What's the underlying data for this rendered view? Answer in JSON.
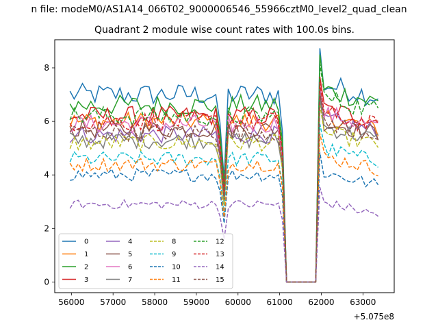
{
  "figure": {
    "suptitle": "n file: modeM0/AS1A14_066T02_9000006546_55966cztM0_level2_quad_clean",
    "title": "Quadrant 2 module wise count rates with 100.0s bins."
  },
  "chart_data": {
    "type": "line",
    "title": "Quadrant 2 module wise count rates with 100.0s bins.",
    "xlabel": "",
    "ylabel": "",
    "x_offset_label": "+5.075e8",
    "xlim": [
      55600,
      63750
    ],
    "ylim": [
      -0.4,
      9.05
    ],
    "xticks": [
      56000,
      57000,
      58000,
      59000,
      60000,
      61000,
      62000,
      63000
    ],
    "yticks": [
      0,
      2,
      4,
      6,
      8
    ],
    "legend": {
      "location": "lower-left",
      "columns": 4
    },
    "x_start": 55966,
    "bin_seconds": 100,
    "gap": [
      61150,
      61950
    ],
    "dips": [
      59700,
      61050
    ],
    "series": [
      {
        "name": "0",
        "color": "#1f77b4",
        "dashed": false,
        "level": 7.0,
        "post": 7.4
      },
      {
        "name": "1",
        "color": "#ff7f0e",
        "dashed": false,
        "level": 6.0,
        "post": 6.2
      },
      {
        "name": "2",
        "color": "#2ca02c",
        "dashed": false,
        "level": 6.6,
        "post": 7.2
      },
      {
        "name": "3",
        "color": "#d62728",
        "dashed": false,
        "level": 6.2,
        "post": 6.5
      },
      {
        "name": "4",
        "color": "#9467bd",
        "dashed": false,
        "level": 5.5,
        "post": 6.1
      },
      {
        "name": "5",
        "color": "#8c564b",
        "dashed": false,
        "level": 5.7,
        "post": 6.0
      },
      {
        "name": "6",
        "color": "#e377c2",
        "dashed": false,
        "level": 5.9,
        "post": 6.3
      },
      {
        "name": "7",
        "color": "#7f7f7f",
        "dashed": false,
        "level": 5.3,
        "post": 5.8
      },
      {
        "name": "8",
        "color": "#bcbd22",
        "dashed": true,
        "level": 5.2,
        "post": 5.6
      },
      {
        "name": "9",
        "color": "#17becf",
        "dashed": true,
        "level": 4.6,
        "post": 5.0
      },
      {
        "name": "10",
        "color": "#1f77b4",
        "dashed": true,
        "level": 4.0,
        "post": 4.1
      },
      {
        "name": "11",
        "color": "#ff7f0e",
        "dashed": true,
        "level": 4.4,
        "post": 4.7
      },
      {
        "name": "12",
        "color": "#2ca02c",
        "dashed": true,
        "level": 6.2,
        "post": 6.9
      },
      {
        "name": "13",
        "color": "#d62728",
        "dashed": true,
        "level": 6.0,
        "post": 6.3
      },
      {
        "name": "14",
        "color": "#9467bd",
        "dashed": true,
        "level": 2.9,
        "post": 3.0
      },
      {
        "name": "15",
        "color": "#8c564b",
        "dashed": true,
        "level": 5.6,
        "post": 6.0
      }
    ]
  }
}
